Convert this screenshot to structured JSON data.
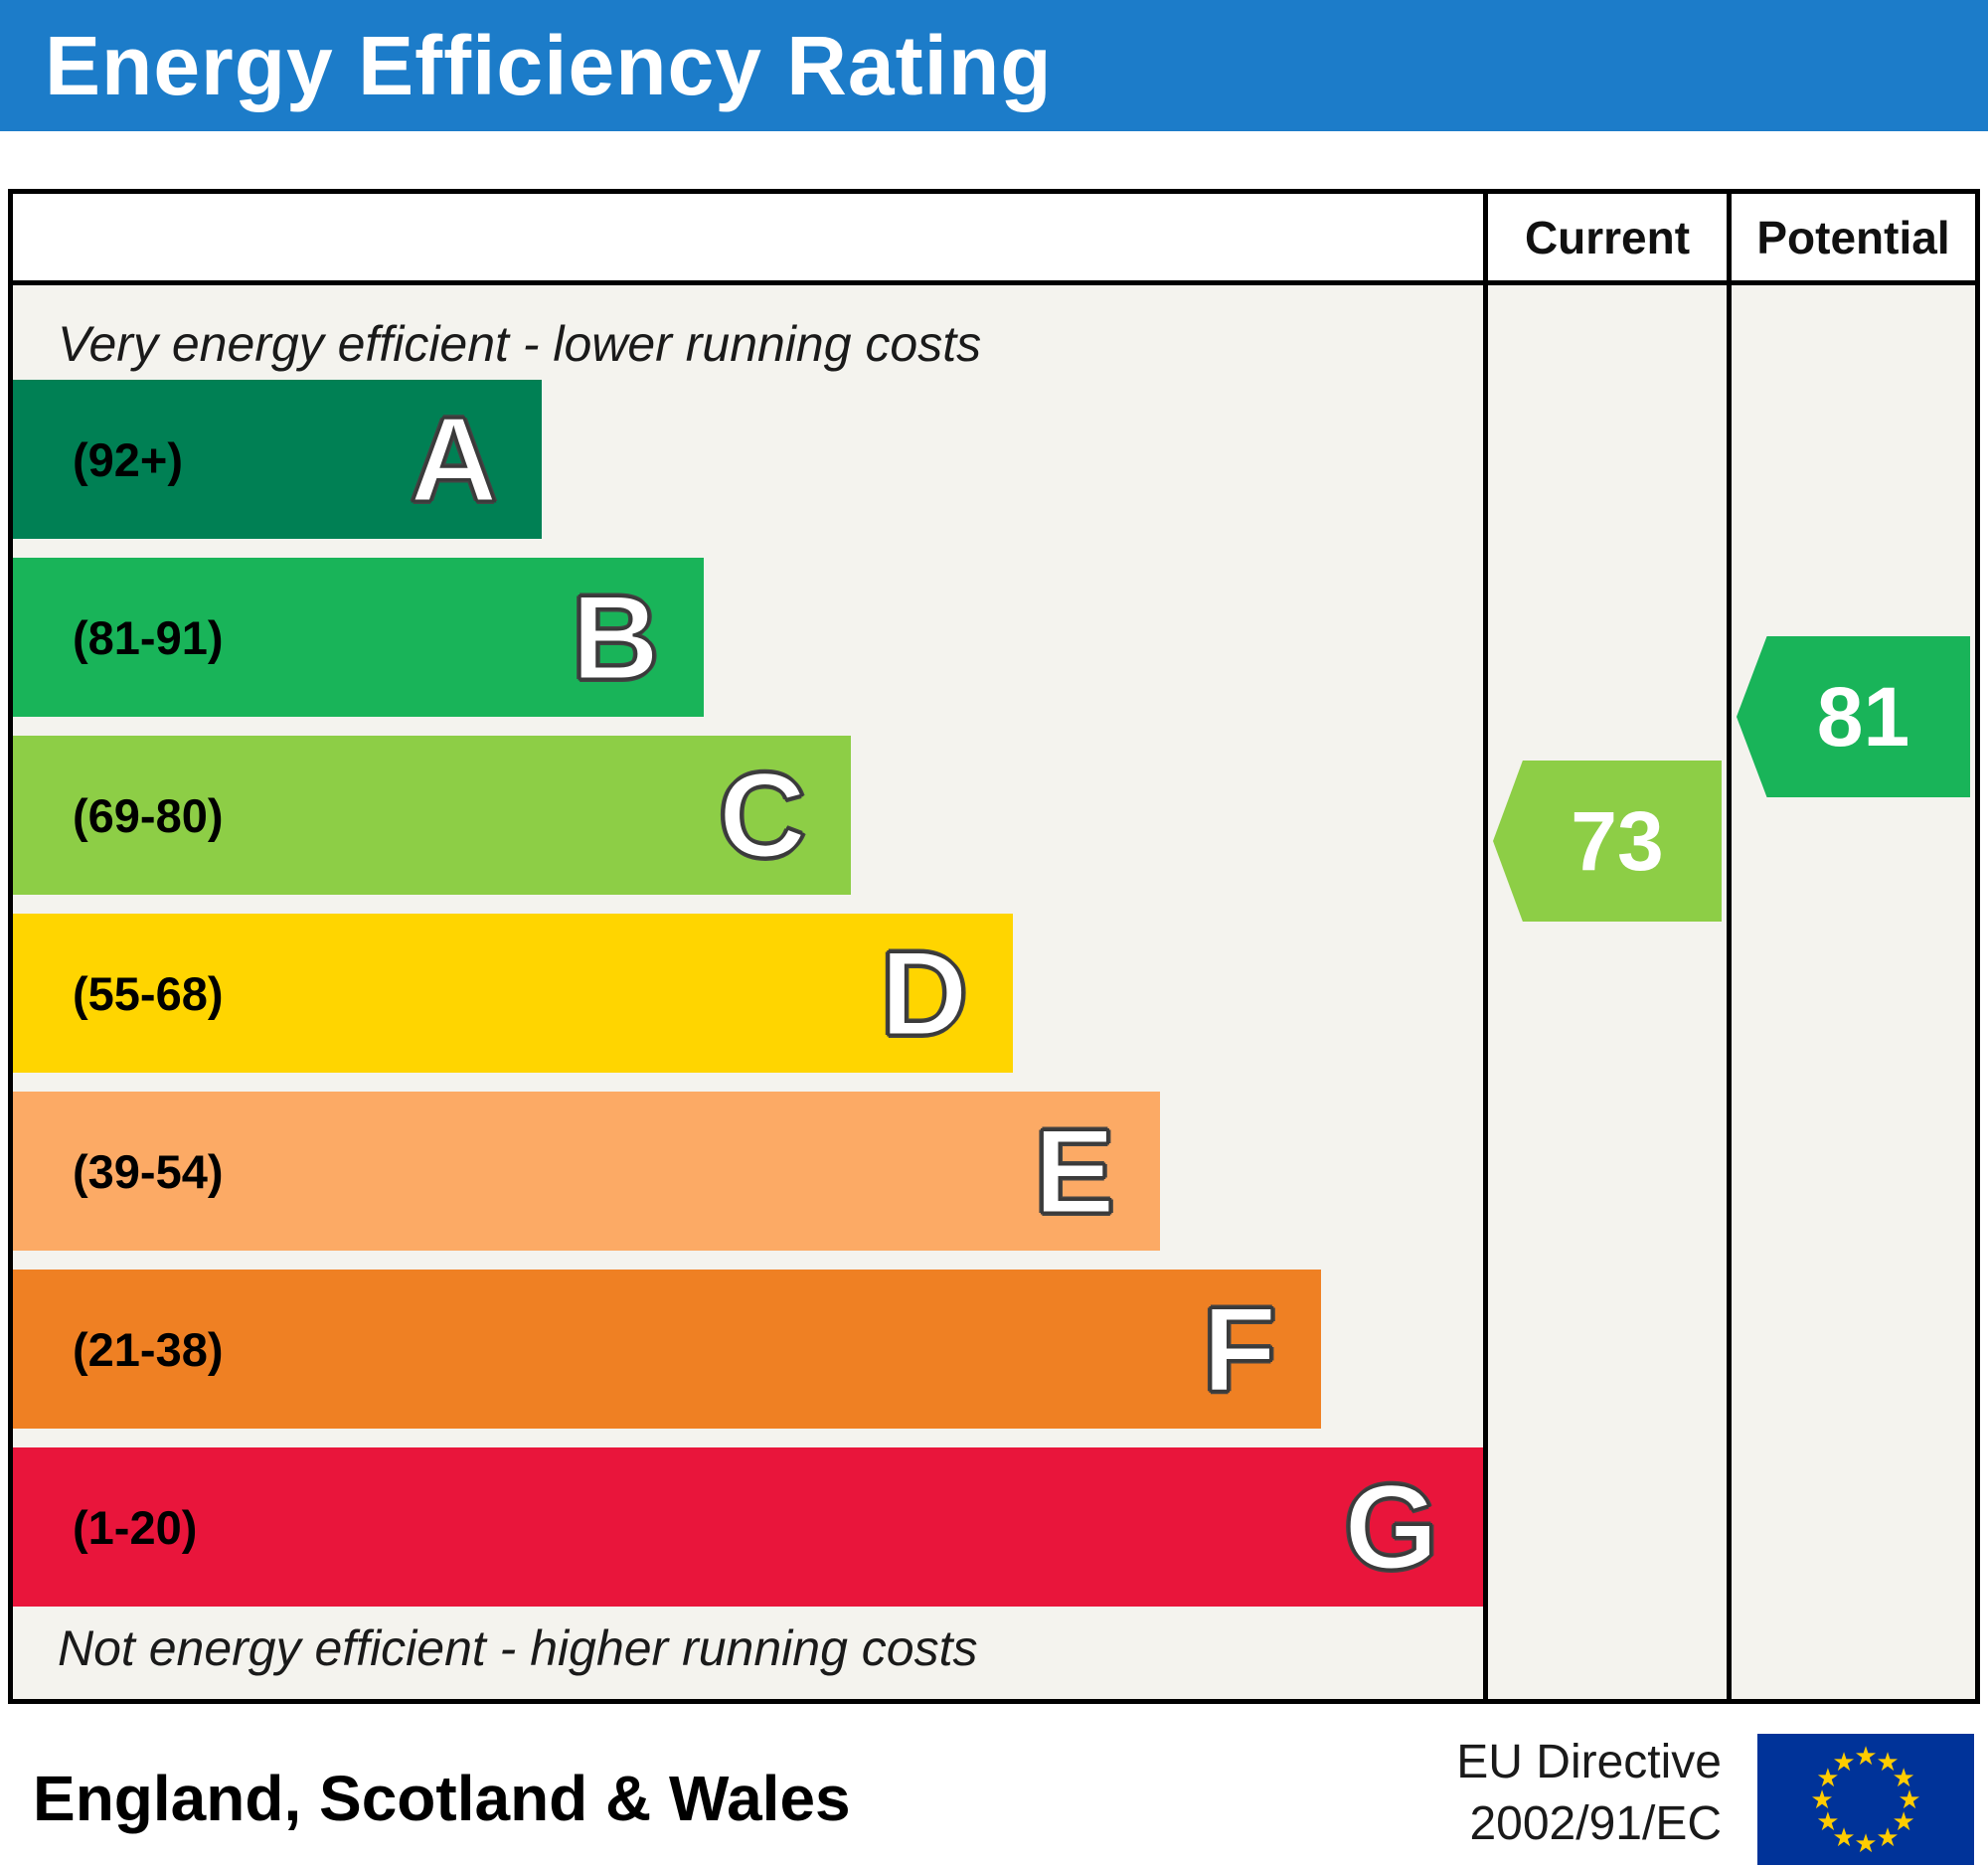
{
  "title": "Energy Efficiency Rating",
  "columns": {
    "current": "Current",
    "potential": "Potential"
  },
  "notes": {
    "top": "Very energy efficient - lower running costs",
    "bottom": "Not energy efficient - higher running costs"
  },
  "footer": {
    "region": "England, Scotland & Wales",
    "directive": [
      "EU Directive",
      "2002/91/EC"
    ]
  },
  "colors": {
    "header_bg": "#1c7cc9",
    "header_text": "#ffffff",
    "border": "#000000",
    "eu_flag_bg": "#003399",
    "eu_star": "#ffcc00"
  },
  "chart_data": {
    "type": "bar",
    "title": "Energy Efficiency Rating",
    "legend_position": "none",
    "bands": [
      {
        "letter": "A",
        "range": "(92+)",
        "min": 92,
        "max": 100,
        "color": "#008054",
        "width_pct": 36
      },
      {
        "letter": "B",
        "range": "(81-91)",
        "min": 81,
        "max": 91,
        "color": "#19b459",
        "width_pct": 47
      },
      {
        "letter": "C",
        "range": "(69-80)",
        "min": 69,
        "max": 80,
        "color": "#8dce46",
        "width_pct": 57
      },
      {
        "letter": "D",
        "range": "(55-68)",
        "min": 55,
        "max": 68,
        "color": "#ffd500",
        "width_pct": 68
      },
      {
        "letter": "E",
        "range": "(39-54)",
        "min": 39,
        "max": 54,
        "color": "#fcaa65",
        "width_pct": 78
      },
      {
        "letter": "F",
        "range": "(21-38)",
        "min": 21,
        "max": 38,
        "color": "#ef8023",
        "width_pct": 89
      },
      {
        "letter": "G",
        "range": "(1-20)",
        "min": 1,
        "max": 20,
        "color": "#e9153b",
        "width_pct": 100
      }
    ],
    "current": {
      "label": "Current",
      "value": 73,
      "band": "C",
      "color": "#8dce46"
    },
    "potential": {
      "label": "Potential",
      "value": 81,
      "band": "B",
      "color": "#19b459"
    }
  }
}
